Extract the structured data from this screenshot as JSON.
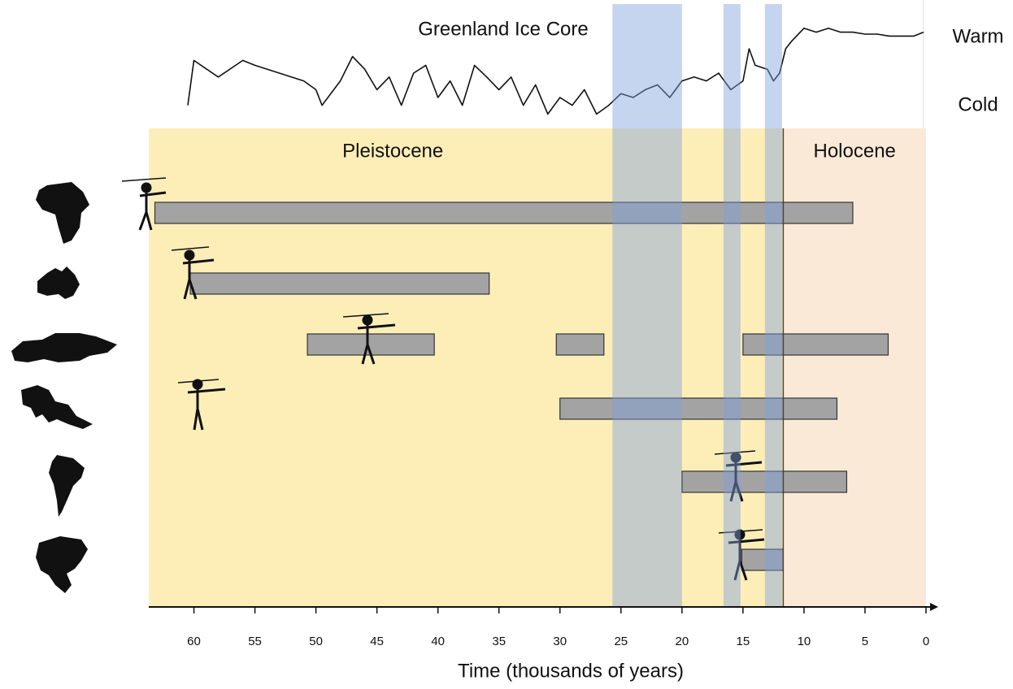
{
  "chart_data": [
    {
      "type": "line",
      "title": "Greenland Ice Core",
      "annotations": [
        "Warm",
        "Cold"
      ],
      "annotation_colors": [
        "#e0452b",
        "#3ea7e0"
      ],
      "xlim": [
        63.7,
        -1
      ],
      "ylim": [
        0,
        100
      ],
      "color": "#111111",
      "x": [
        60.5,
        60,
        58,
        56,
        55,
        53,
        51,
        50,
        49.5,
        48,
        47,
        46,
        45,
        44,
        43,
        42,
        41,
        40,
        39,
        38,
        37,
        36,
        35,
        34,
        33,
        32,
        31,
        30,
        29,
        28,
        27,
        26,
        25,
        24,
        23,
        22,
        21,
        20,
        19,
        18,
        17,
        16,
        15,
        14.5,
        14,
        13,
        12.5,
        12,
        11.5,
        11,
        10,
        9,
        8,
        7,
        6,
        5,
        4,
        3,
        2,
        1,
        0.2
      ],
      "values": [
        17,
        63,
        46,
        63,
        58,
        50,
        42,
        33,
        17,
        42,
        67,
        54,
        33,
        46,
        17,
        50,
        58,
        25,
        42,
        17,
        58,
        46,
        33,
        46,
        17,
        38,
        8,
        25,
        17,
        33,
        8,
        17,
        29,
        25,
        33,
        38,
        25,
        42,
        46,
        42,
        50,
        33,
        42,
        75,
        58,
        54,
        42,
        50,
        75,
        83,
        96,
        92,
        96,
        92,
        92,
        90,
        90,
        88,
        88,
        88,
        92
      ]
    },
    {
      "type": "gantt",
      "xlabel": "Time (thousands of years)",
      "xlim": [
        63.7,
        -1
      ],
      "xticks": [
        60,
        55,
        50,
        45,
        40,
        35,
        30,
        25,
        20,
        15,
        10,
        5,
        0
      ],
      "eras": [
        {
          "name": "Pleistocene",
          "start": 63.7,
          "end": 11.7,
          "color": "#fdeeb8"
        },
        {
          "name": "Holocene",
          "start": 11.7,
          "end": 0,
          "color": "#fbe9d7"
        }
      ],
      "cold_periods": [
        [
          25.7,
          20.0
        ],
        [
          16.6,
          15.2
        ],
        [
          13.2,
          11.8
        ]
      ],
      "cold_color": "#7f9fdc",
      "bar_color": "#a3a3a3",
      "rows": [
        {
          "spans": [
            [
              63.2,
              6.0
            ]
          ]
        },
        {
          "spans": [
            [
              60.3,
              35.8
            ]
          ]
        },
        {
          "spans": [
            [
              50.7,
              40.3
            ],
            [
              30.3,
              26.4
            ],
            [
              15.0,
              3.1
            ]
          ]
        },
        {
          "spans": [
            [
              30.0,
              7.3
            ]
          ]
        },
        {
          "spans": [
            [
              20.0,
              6.5
            ]
          ]
        },
        {
          "spans": [
            [
              15.1,
              11.7
            ]
          ]
        }
      ]
    }
  ]
}
